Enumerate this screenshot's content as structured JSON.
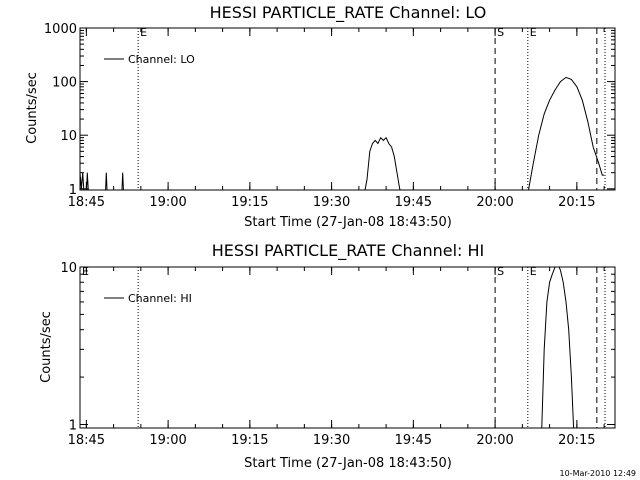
{
  "chart_data": [
    {
      "type": "line",
      "title": "HESSI PARTICLE_RATE Channel: LO",
      "xlabel": "Start Time (27-Jan-08 18:43:50)",
      "ylabel": "Counts/sec",
      "yscale": "log",
      "ylim": [
        0.95,
        1000
      ],
      "xlim": [
        "18:43:50",
        "20:22:00"
      ],
      "x_ticks": [
        "18:45",
        "19:00",
        "19:15",
        "19:30",
        "19:45",
        "20:00",
        "20:15"
      ],
      "y_ticks": [
        "1",
        "10",
        "100",
        "1000"
      ],
      "legend": {
        "label": "Channel: LO",
        "position": "top-left"
      },
      "markers": [
        {
          "time": "18:43:50",
          "style": "dotted",
          "label": ""
        },
        {
          "time": "18:54:30",
          "style": "dotted",
          "label": "E"
        },
        {
          "time": "20:00:00",
          "style": "dashed",
          "label": "S"
        },
        {
          "time": "20:06:00",
          "style": "dotted",
          "label": "E"
        },
        {
          "time": "20:18:40",
          "style": "dashed",
          "label": ""
        },
        {
          "time": "20:20:10",
          "style": "dotted",
          "label": ""
        }
      ],
      "series": [
        {
          "values": [
            [
              "18:43:50",
              2
            ],
            [
              "18:44:05",
              1
            ],
            [
              "18:44:20",
              2
            ],
            [
              "18:44:35",
              0.8
            ],
            [
              "18:45:00",
              0.8
            ],
            [
              "18:45:10",
              2
            ],
            [
              "18:45:20",
              1
            ],
            [
              "18:45:35",
              0.8
            ],
            [
              "18:48:30",
              0.8
            ],
            [
              "18:48:40",
              2
            ],
            [
              "18:48:50",
              0.8
            ],
            [
              "18:51:30",
              0.8
            ],
            [
              "18:51:40",
              2
            ],
            [
              "18:51:50",
              0.8
            ],
            [
              "19:36:00",
              0.8
            ],
            [
              "19:36:30",
              1.5
            ],
            [
              "19:37:00",
              5
            ],
            [
              "19:37:30",
              7
            ],
            [
              "19:38:00",
              8
            ],
            [
              "19:38:30",
              7
            ],
            [
              "19:39:00",
              9
            ],
            [
              "19:39:30",
              8
            ],
            [
              "19:40:00",
              9
            ],
            [
              "19:40:30",
              7
            ],
            [
              "19:41:00",
              6
            ],
            [
              "19:41:30",
              4
            ],
            [
              "19:42:00",
              2
            ],
            [
              "19:42:30",
              1
            ],
            [
              "19:43:00",
              0.8
            ],
            [
              "20:06:00",
              0.8
            ],
            [
              "20:07:00",
              3
            ],
            [
              "20:08:00",
              10
            ],
            [
              "20:09:00",
              25
            ],
            [
              "20:10:00",
              45
            ],
            [
              "20:11:00",
              70
            ],
            [
              "20:12:00",
              100
            ],
            [
              "20:13:00",
              120
            ],
            [
              "20:14:00",
              110
            ],
            [
              "20:15:00",
              80
            ],
            [
              "20:16:00",
              45
            ],
            [
              "20:17:00",
              18
            ],
            [
              "20:18:00",
              6
            ],
            [
              "20:19:00",
              3
            ],
            [
              "20:19:40",
              1.8
            ],
            [
              "20:20:00",
              1.8
            ]
          ]
        }
      ]
    },
    {
      "type": "line",
      "title": "HESSI PARTICLE_RATE Channel: HI",
      "xlabel": "Start Time (27-Jan-08 18:43:50)",
      "ylabel": "Counts/sec",
      "yscale": "log",
      "ylim": [
        0.95,
        10
      ],
      "xlim": [
        "18:43:50",
        "20:22:00"
      ],
      "x_ticks": [
        "18:45",
        "19:00",
        "19:15",
        "19:30",
        "19:45",
        "20:00",
        "20:15"
      ],
      "y_ticks": [
        "1",
        "10"
      ],
      "legend": {
        "label": "Channel: HI",
        "position": "top-left"
      },
      "markers": [
        {
          "time": "18:43:50",
          "style": "dotted",
          "label": "E"
        },
        {
          "time": "18:54:30",
          "style": "dotted",
          "label": ""
        },
        {
          "time": "20:00:00",
          "style": "dashed",
          "label": "S"
        },
        {
          "time": "20:06:00",
          "style": "dotted",
          "label": "E"
        },
        {
          "time": "20:18:40",
          "style": "dashed",
          "label": ""
        },
        {
          "time": "20:20:10",
          "style": "dotted",
          "label": ""
        }
      ],
      "series": [
        {
          "values": [
            [
              "20:08:30",
              0.8
            ],
            [
              "20:09:00",
              3
            ],
            [
              "20:09:30",
              6
            ],
            [
              "20:10:00",
              8
            ],
            [
              "20:10:30",
              9
            ],
            [
              "20:11:00",
              10
            ],
            [
              "20:11:30",
              10.5
            ],
            [
              "20:12:00",
              9.5
            ],
            [
              "20:12:30",
              8
            ],
            [
              "20:13:00",
              6
            ],
            [
              "20:13:30",
              4
            ],
            [
              "20:14:00",
              2
            ],
            [
              "20:14:30",
              0.8
            ]
          ]
        }
      ]
    }
  ],
  "footer": {
    "timestamp": "10-Mar-2010 12:49"
  }
}
